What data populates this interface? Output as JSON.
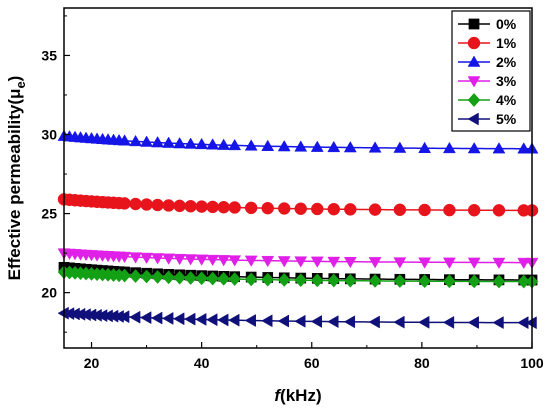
{
  "chart_data": {
    "type": "line",
    "xlabel_italic": "f",
    "xlabel_rest": "(kHz)",
    "ylabel_main": "Effective permeability(μ",
    "ylabel_sub": "e",
    "ylabel_close": ")",
    "xlim": [
      15,
      100
    ],
    "ylim": [
      16.5,
      38
    ],
    "x_ticks": [
      20,
      40,
      60,
      80,
      100
    ],
    "y_ticks": [
      20,
      25,
      30,
      35
    ],
    "grid": false,
    "legend_position": "top-right",
    "series": [
      {
        "name": "0%",
        "color": "#000000",
        "marker": "square",
        "start": 21.6,
        "end": 20.8
      },
      {
        "name": "1%",
        "color": "#e8141c",
        "marker": "circle",
        "start": 25.9,
        "end": 25.2
      },
      {
        "name": "2%",
        "color": "#1515e8",
        "marker": "triangle-up",
        "start": 29.9,
        "end": 29.1
      },
      {
        "name": "3%",
        "color": "#e020e8",
        "marker": "triangle-down",
        "start": 22.5,
        "end": 21.9
      },
      {
        "name": "4%",
        "color": "#14a014",
        "marker": "diamond",
        "start": 21.3,
        "end": 20.7
      },
      {
        "name": "5%",
        "color": "#10107a",
        "marker": "triangle-left",
        "start": 18.7,
        "end": 18.1
      }
    ]
  }
}
